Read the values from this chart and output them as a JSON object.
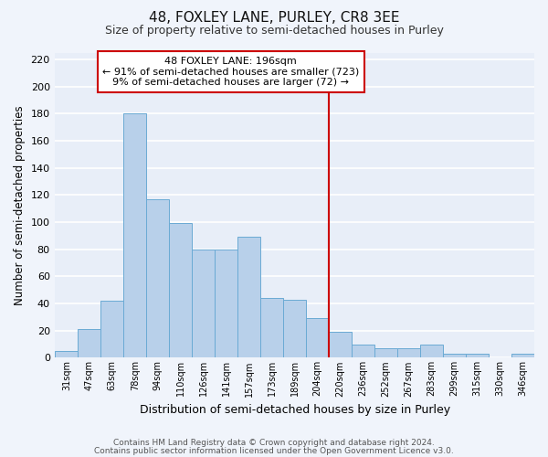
{
  "title": "48, FOXLEY LANE, PURLEY, CR8 3EE",
  "subtitle": "Size of property relative to semi-detached houses in Purley",
  "xlabel": "Distribution of semi-detached houses by size in Purley",
  "ylabel": "Number of semi-detached properties",
  "bar_labels": [
    "31sqm",
    "47sqm",
    "63sqm",
    "78sqm",
    "94sqm",
    "110sqm",
    "126sqm",
    "141sqm",
    "157sqm",
    "173sqm",
    "189sqm",
    "204sqm",
    "220sqm",
    "236sqm",
    "252sqm",
    "267sqm",
    "283sqm",
    "299sqm",
    "315sqm",
    "330sqm",
    "346sqm"
  ],
  "bar_values": [
    5,
    21,
    42,
    180,
    117,
    99,
    80,
    80,
    89,
    44,
    43,
    29,
    19,
    10,
    7,
    7,
    10,
    3,
    3,
    0,
    3
  ],
  "bar_color": "#b8d0ea",
  "bar_edgecolor": "#6aaad4",
  "background_color": "#e8eef8",
  "fig_background_color": "#f0f4fb",
  "grid_color": "#ffffff",
  "vline_x": 11.5,
  "vline_color": "#cc0000",
  "annotation_text": "48 FOXLEY LANE: 196sqm\n← 91% of semi-detached houses are smaller (723)\n9% of semi-detached houses are larger (72) →",
  "annotation_box_facecolor": "#ffffff",
  "annotation_box_edgecolor": "#cc0000",
  "ylim": [
    0,
    225
  ],
  "yticks": [
    0,
    20,
    40,
    60,
    80,
    100,
    120,
    140,
    160,
    180,
    200,
    220
  ],
  "footer_line1": "Contains HM Land Registry data © Crown copyright and database right 2024.",
  "footer_line2": "Contains public sector information licensed under the Open Government Licence v3.0."
}
